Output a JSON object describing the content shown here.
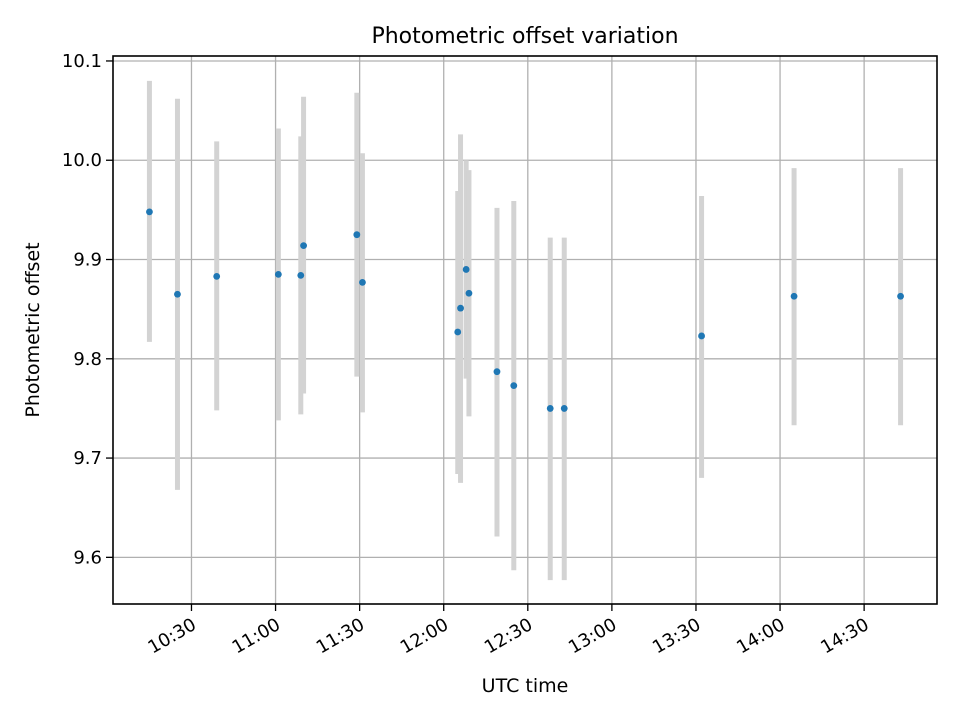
{
  "chart_data": {
    "type": "scatter",
    "title": "Photometric offset variation",
    "xlabel": "UTC time",
    "ylabel": "Photometric offset",
    "x_axis_type": "time",
    "xlim": [
      "10:02",
      "14:56"
    ],
    "ylim": [
      9.553,
      10.105
    ],
    "x_ticks": [
      "10:30",
      "11:00",
      "11:30",
      "12:00",
      "12:30",
      "13:00",
      "13:30",
      "14:00",
      "14:30"
    ],
    "y_ticks": [
      "9.6",
      "9.7",
      "9.8",
      "9.9",
      "10.0",
      "10.1"
    ],
    "grid": true,
    "colors": {
      "point": "#1f77b4",
      "errorbar": "#d3d3d3",
      "grid": "#b0b0b0",
      "axes": "#000000"
    },
    "series": [
      {
        "points": [
          {
            "time": "10:15",
            "y": 9.948,
            "low": 9.817,
            "high": 10.08
          },
          {
            "time": "10:25",
            "y": 9.865,
            "low": 9.668,
            "high": 10.062
          },
          {
            "time": "10:39",
            "y": 9.883,
            "low": 9.748,
            "high": 10.019
          },
          {
            "time": "11:01",
            "y": 9.885,
            "low": 9.738,
            "high": 10.032
          },
          {
            "time": "11:09",
            "y": 9.884,
            "low": 9.744,
            "high": 10.024
          },
          {
            "time": "11:10",
            "y": 9.914,
            "low": 9.765,
            "high": 10.064
          },
          {
            "time": "11:29",
            "y": 9.925,
            "low": 9.782,
            "high": 10.068
          },
          {
            "time": "11:31",
            "y": 9.877,
            "low": 9.746,
            "high": 10.007
          },
          {
            "time": "12:05",
            "y": 9.827,
            "low": 9.684,
            "high": 9.969
          },
          {
            "time": "12:06",
            "y": 9.851,
            "low": 9.675,
            "high": 10.026
          },
          {
            "time": "12:08",
            "y": 9.89,
            "low": 9.78,
            "high": 10.0
          },
          {
            "time": "12:09",
            "y": 9.866,
            "low": 9.742,
            "high": 9.99
          },
          {
            "time": "12:19",
            "y": 9.787,
            "low": 9.621,
            "high": 9.952
          },
          {
            "time": "12:25",
            "y": 9.773,
            "low": 9.587,
            "high": 9.959
          },
          {
            "time": "12:38",
            "y": 9.75,
            "low": 9.577,
            "high": 9.922
          },
          {
            "time": "12:43",
            "y": 9.75,
            "low": 9.577,
            "high": 9.922
          },
          {
            "time": "13:32",
            "y": 9.823,
            "low": 9.68,
            "high": 9.964
          },
          {
            "time": "14:05",
            "y": 9.863,
            "low": 9.733,
            "high": 9.992
          },
          {
            "time": "14:43",
            "y": 9.863,
            "low": 9.733,
            "high": 9.992
          }
        ]
      }
    ]
  }
}
